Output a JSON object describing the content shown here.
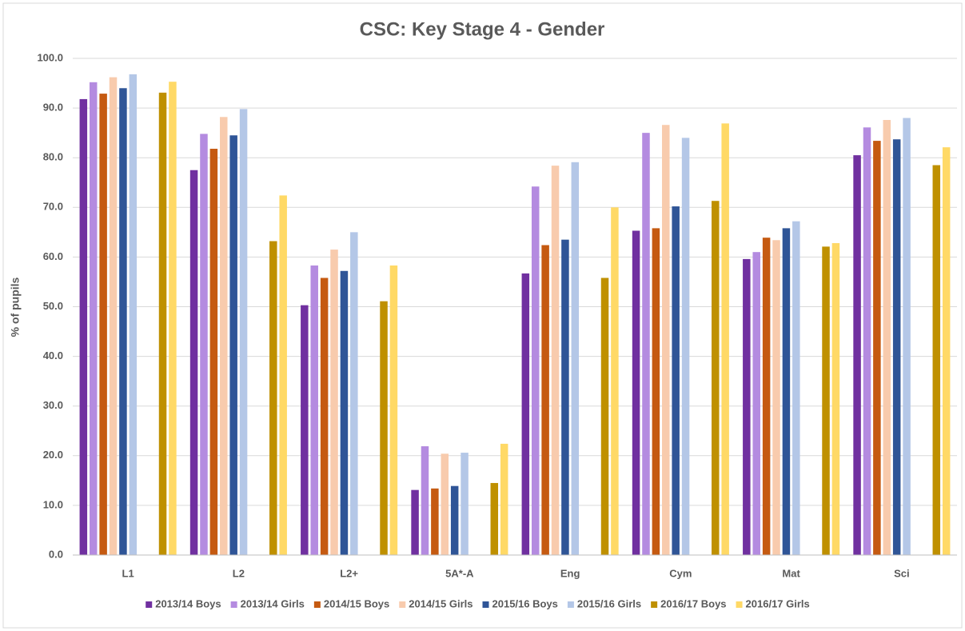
{
  "chart_data": {
    "type": "bar",
    "title": "CSC: Key Stage 4 - Gender",
    "y_label": "% of pupils",
    "categories": [
      "L1",
      "L2",
      "L2+",
      "5A*-A",
      "Eng",
      "Cym",
      "Mat",
      "Sci"
    ],
    "series": [
      {
        "name": "2013/14 Boys",
        "color": "#7030a0",
        "values": [
          91.8,
          77.5,
          50.3,
          13.1,
          56.7,
          65.3,
          59.6,
          80.5
        ]
      },
      {
        "name": "2013/14 Girls",
        "color": "#b48be0",
        "values": [
          95.2,
          84.8,
          58.3,
          21.9,
          74.2,
          85.0,
          61.0,
          86.1
        ]
      },
      {
        "name": "2014/15 Boys",
        "color": "#c55a11",
        "values": [
          92.9,
          81.8,
          55.8,
          13.4,
          62.4,
          65.8,
          63.9,
          83.4
        ]
      },
      {
        "name": "2014/15 Girls",
        "color": "#f8cbad",
        "values": [
          96.2,
          88.2,
          61.5,
          20.4,
          78.4,
          86.6,
          63.4,
          87.6
        ]
      },
      {
        "name": "2015/16 Boys",
        "color": "#2f5597",
        "values": [
          94.0,
          84.5,
          57.2,
          13.9,
          63.5,
          70.2,
          65.8,
          83.7
        ]
      },
      {
        "name": "2015/16 Girls",
        "color": "#b4c7e7",
        "values": [
          96.8,
          89.8,
          65.0,
          20.6,
          79.1,
          84.0,
          67.2,
          88.0
        ]
      },
      {
        "name": "2016/17 Boys",
        "color": "#bf9000",
        "values": [
          93.1,
          63.2,
          51.1,
          14.5,
          55.8,
          71.3,
          62.1,
          78.5
        ]
      },
      {
        "name": "2016/17 Girls",
        "color": "#ffd966",
        "values": [
          95.3,
          72.4,
          58.3,
          22.4,
          70.0,
          86.9,
          62.8,
          82.1
        ]
      }
    ],
    "ylim": [
      0,
      100
    ],
    "yticks": [
      {
        "value": 0,
        "label": "0.0"
      },
      {
        "value": 10,
        "label": "10.0"
      },
      {
        "value": 20,
        "label": "20.0"
      },
      {
        "value": 30,
        "label": "30.0"
      },
      {
        "value": 40,
        "label": "40.0"
      },
      {
        "value": 50,
        "label": "50.0"
      },
      {
        "value": 60,
        "label": "60.0"
      },
      {
        "value": 70,
        "label": "70.0"
      },
      {
        "value": 80,
        "label": "80.0"
      },
      {
        "value": 90,
        "label": "90.0"
      },
      {
        "value": 100,
        "label": "100.0"
      }
    ],
    "grid": true,
    "legend": "bottom"
  }
}
